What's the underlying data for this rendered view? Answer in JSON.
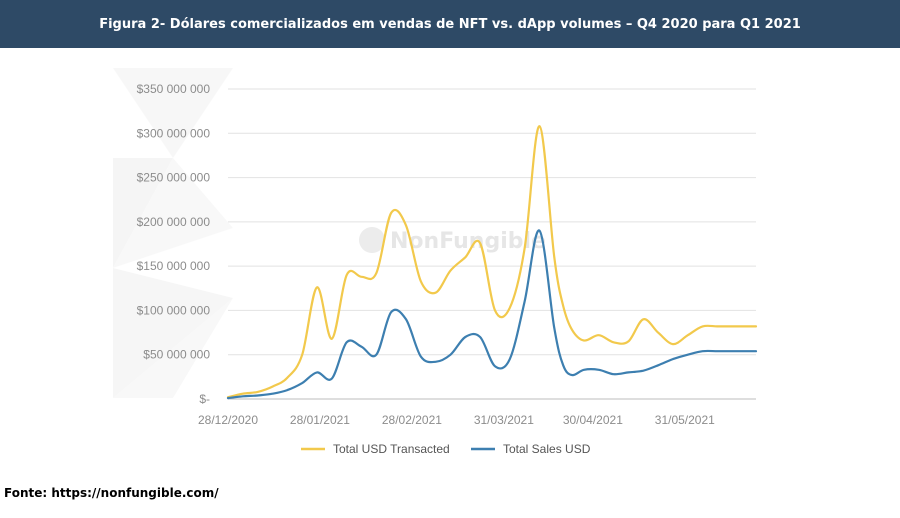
{
  "header": {
    "title": "Figura 2- Dólares comercializados em vendas de NFT vs. dApp volumes – Q4 2020 para Q1 2021"
  },
  "watermark": "NonFungible",
  "source": "Fonte: https://nonfungible.com/",
  "colors": {
    "header_bg": "#2e4a66",
    "total_usd_transacted": "#f2c94c",
    "total_sales_usd": "#3d7fb0",
    "grid": "#e2e2e2",
    "tick_text": "#8c8c8c"
  },
  "chart_data": {
    "type": "line",
    "title": "",
    "xlabel": "",
    "ylabel": "",
    "ylim": [
      0,
      350000000
    ],
    "x_range_days": [
      0,
      178
    ],
    "y_ticks": [
      0,
      50000000,
      100000000,
      150000000,
      200000000,
      250000000,
      300000000,
      350000000
    ],
    "y_tick_labels": [
      "$-",
      "$50 000 000",
      "$100 000 000",
      "$150 000 000",
      "$200 000 000",
      "$250 000 000",
      "$300 000 000",
      "$350 000 000"
    ],
    "x_ticks": [
      0,
      31,
      62,
      93,
      123,
      154
    ],
    "x_tick_labels": [
      "28/12/2020",
      "28/01/2021",
      "28/02/2021",
      "31/03/2021",
      "30/04/2021",
      "31/05/2021"
    ],
    "grid": "horizontal",
    "legend_position": "bottom",
    "series": [
      {
        "name": "Total USD Transacted",
        "color": "#f2c94c",
        "x": [
          0,
          5,
          10,
          15,
          20,
          25,
          30,
          35,
          40,
          45,
          50,
          55,
          60,
          65,
          70,
          75,
          80,
          85,
          90,
          95,
          100,
          105,
          110,
          113,
          116,
          120,
          125,
          130,
          135,
          140,
          145,
          150,
          155,
          160,
          165,
          170,
          175,
          178
        ],
        "values": [
          2000000,
          6000000,
          8000000,
          14000000,
          24000000,
          50000000,
          126000000,
          68000000,
          140000000,
          138000000,
          142000000,
          210000000,
          196000000,
          133000000,
          120000000,
          145000000,
          160000000,
          176000000,
          100000000,
          103000000,
          170000000,
          308000000,
          160000000,
          105000000,
          78000000,
          66000000,
          72000000,
          64000000,
          65000000,
          90000000,
          75000000,
          62000000,
          72000000,
          82000000,
          82000000,
          82000000,
          82000000,
          82000000
        ]
      },
      {
        "name": "Total Sales USD",
        "color": "#3d7fb0",
        "x": [
          0,
          5,
          10,
          15,
          20,
          25,
          30,
          35,
          40,
          45,
          50,
          55,
          60,
          65,
          70,
          75,
          80,
          85,
          90,
          95,
          100,
          105,
          110,
          113,
          116,
          120,
          125,
          130,
          135,
          140,
          145,
          150,
          155,
          160,
          165,
          170,
          175,
          178
        ],
        "values": [
          1000000,
          3000000,
          4000000,
          6000000,
          10000000,
          18000000,
          30000000,
          23000000,
          64000000,
          59000000,
          50000000,
          98000000,
          90000000,
          48000000,
          42000000,
          50000000,
          70000000,
          70000000,
          37000000,
          45000000,
          110000000,
          190000000,
          80000000,
          38000000,
          27000000,
          33000000,
          33000000,
          28000000,
          30000000,
          32000000,
          38000000,
          45000000,
          50000000,
          54000000,
          54000000,
          54000000,
          54000000,
          54000000
        ]
      }
    ]
  }
}
